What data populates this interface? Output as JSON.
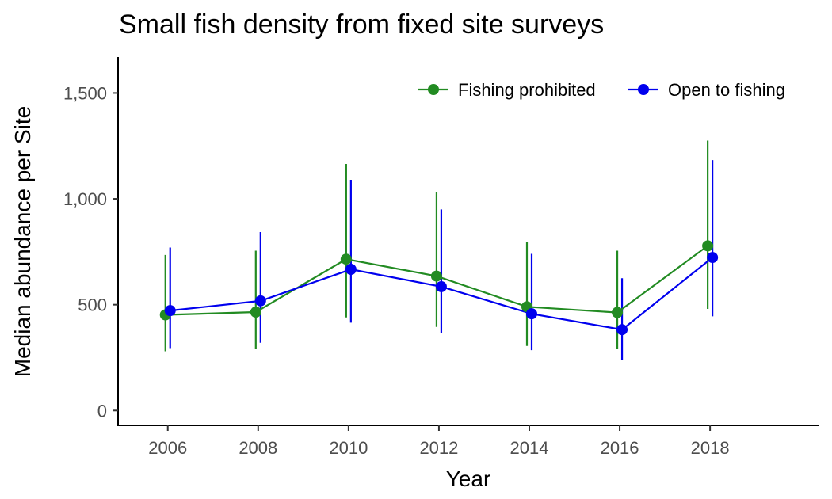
{
  "chart_data": {
    "type": "line",
    "title": "Small fish density from fixed site surveys",
    "xlabel": "Year",
    "ylabel": "Median abundance per Site",
    "x": [
      2006,
      2008,
      2010,
      2012,
      2014,
      2016,
      2018
    ],
    "x_ticks": [
      "2006",
      "2008",
      "2010",
      "2012",
      "2014",
      "2016",
      "2018"
    ],
    "y_ticks": [
      "0",
      "500",
      "1,000",
      "1,500"
    ],
    "y_tick_values": [
      0,
      500,
      1000,
      1500
    ],
    "xlim": [
      2004.9,
      2020.4
    ],
    "ylim": [
      -70,
      1670
    ],
    "legend_position": "top-right",
    "grid": false,
    "series": [
      {
        "name": "Fishing prohibited",
        "color": "#228B22",
        "values": [
          452,
          465,
          715,
          635,
          490,
          463,
          778
        ],
        "lower": [
          280,
          290,
          440,
          395,
          305,
          290,
          480
        ],
        "upper": [
          735,
          755,
          1165,
          1030,
          798,
          755,
          1275
        ]
      },
      {
        "name": "Open to fishing",
        "color": "#0000EE",
        "values": [
          472,
          518,
          667,
          585,
          457,
          382,
          723
        ],
        "lower": [
          295,
          320,
          415,
          365,
          285,
          240,
          445
        ],
        "upper": [
          770,
          843,
          1090,
          950,
          740,
          625,
          1183
        ]
      }
    ]
  }
}
